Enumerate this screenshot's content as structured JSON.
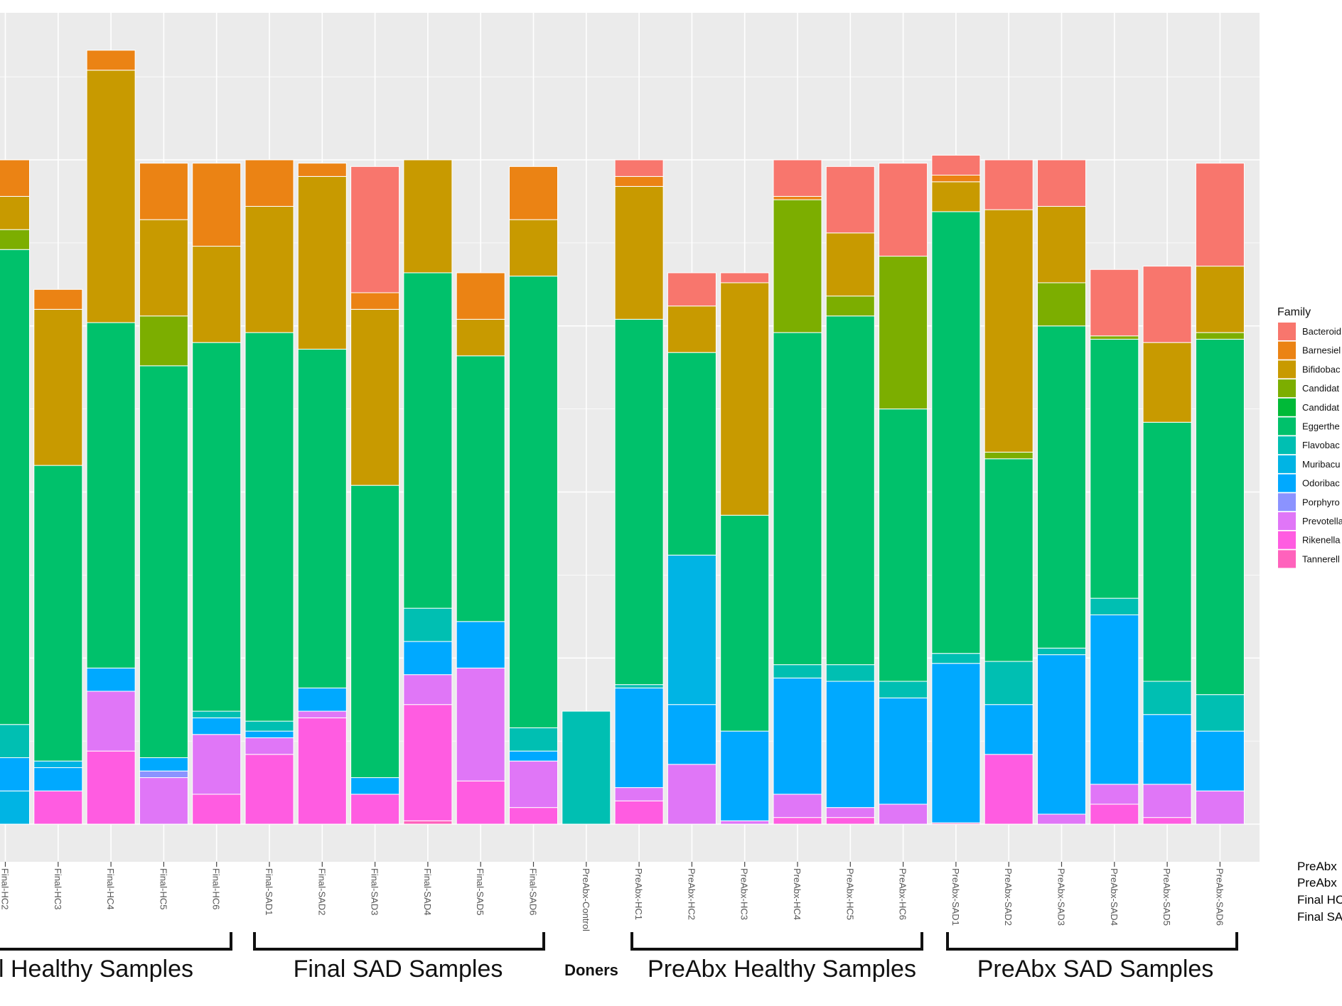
{
  "chart_data": {
    "type": "bar",
    "stacked": true,
    "title": "",
    "xlabel": "",
    "ylabel": "",
    "ylim": [
      0,
      1.2
    ],
    "grid": true,
    "legend_placement": "right",
    "legend_title": "Family",
    "families": [
      {
        "name": "Bacteroid",
        "color": "#F8766D"
      },
      {
        "name": "Barnesiel",
        "color": "#EB8314"
      },
      {
        "name": "Bifidobac",
        "color": "#C89A00"
      },
      {
        "name": "Candidat",
        "color": "#7CAE00"
      },
      {
        "name": "Candidat",
        "color": "#00BA38"
      },
      {
        "name": "Eggerthe",
        "color": "#00C16B"
      },
      {
        "name": "Flavobac",
        "color": "#00BFB2"
      },
      {
        "name": "Muribacu",
        "color": "#00B4E4"
      },
      {
        "name": "Odoribac",
        "color": "#00A9FF"
      },
      {
        "name": "Porphyro",
        "color": "#8B93FF"
      },
      {
        "name": "Prevotella",
        "color": "#E076F7"
      },
      {
        "name": "Rikenella",
        "color": "#FF5CE1"
      },
      {
        "name": "Tannerell",
        "color": "#FF62BC"
      }
    ],
    "samples": [
      {
        "label": "Final-HC2",
        "stack": [
          [
            "Muribacu",
            0.05
          ],
          [
            "Odoribac",
            0.05
          ],
          [
            "Flavobac",
            0.05
          ],
          [
            "Eggerthe",
            0.715
          ],
          [
            "Candidat",
            0.03
          ],
          [
            "Bifidobac",
            0.05
          ],
          [
            "Barnesiel",
            0.055
          ]
        ]
      },
      {
        "label": "Final-HC3",
        "stack": [
          [
            "Rikenella",
            0.05
          ],
          [
            "Flavobac",
            0.0
          ],
          [
            "Odoribac",
            0.035
          ],
          [
            "Muribacu",
            0.01
          ],
          [
            "Eggerthe",
            0.445
          ],
          [
            "Bifidobac",
            0.235
          ],
          [
            "Barnesiel",
            0.03
          ]
        ]
      },
      {
        "label": "Final-HC4",
        "stack": [
          [
            "Rikenella",
            0.11
          ],
          [
            "Prevotella",
            0.09
          ],
          [
            "Odoribac",
            0.035
          ],
          [
            "Eggerthe",
            0.52
          ],
          [
            "Bifidobac",
            0.38
          ],
          [
            "Barnesiel",
            0.03
          ]
        ]
      },
      {
        "label": "Final-HC5",
        "stack": [
          [
            "Prevotella",
            0.07
          ],
          [
            "Porphyro",
            0.01
          ],
          [
            "Odoribac",
            0.02
          ],
          [
            "Eggerthe",
            0.59
          ],
          [
            "Candidat",
            0.075
          ],
          [
            "Bifidobac",
            0.145
          ],
          [
            "Barnesiel",
            0.085
          ]
        ]
      },
      {
        "label": "Final-HC6",
        "stack": [
          [
            "Rikenella",
            0.045
          ],
          [
            "Prevotella",
            0.09
          ],
          [
            "Odoribac",
            0.025
          ],
          [
            "Flavobac",
            0.01
          ],
          [
            "Eggerthe",
            0.555
          ],
          [
            "Bifidobac",
            0.145
          ],
          [
            "Barnesiel",
            0.125
          ]
        ]
      },
      {
        "label": "Final-SAD1",
        "stack": [
          [
            "Rikenella",
            0.105
          ],
          [
            "Prevotella",
            0.025
          ],
          [
            "Odoribac",
            0.01
          ],
          [
            "Flavobac",
            0.015
          ],
          [
            "Eggerthe",
            0.585
          ],
          [
            "Bifidobac",
            0.19
          ],
          [
            "Barnesiel",
            0.07
          ]
        ]
      },
      {
        "label": "Final-SAD2",
        "stack": [
          [
            "Rikenella",
            0.16
          ],
          [
            "Prevotella",
            0.01
          ],
          [
            "Odoribac",
            0.035
          ],
          [
            "Eggerthe",
            0.51
          ],
          [
            "Bifidobac",
            0.26
          ],
          [
            "Barnesiel",
            0.02
          ]
        ]
      },
      {
        "label": "Final-SAD3",
        "stack": [
          [
            "Rikenella",
            0.045
          ],
          [
            "Odoribac",
            0.025
          ],
          [
            "Eggerthe",
            0.44
          ],
          [
            "Bifidobac",
            0.265
          ],
          [
            "Barnesiel",
            0.025
          ],
          [
            "Bacteroid",
            0.19
          ]
        ]
      },
      {
        "label": "Final-SAD4",
        "stack": [
          [
            "Tannerell",
            0.005
          ],
          [
            "Rikenella",
            0.175
          ],
          [
            "Prevotella",
            0.045
          ],
          [
            "Odoribac",
            0.05
          ],
          [
            "Flavobac",
            0.05
          ],
          [
            "Eggerthe",
            0.505
          ],
          [
            "Bifidobac",
            0.17
          ]
        ]
      },
      {
        "label": "Final-SAD5",
        "stack": [
          [
            "Rikenella",
            0.065
          ],
          [
            "Prevotella",
            0.17
          ],
          [
            "Odoribac",
            0.07
          ],
          [
            "Eggerthe",
            0.4
          ],
          [
            "Bifidobac",
            0.055
          ],
          [
            "Barnesiel",
            0.07
          ]
        ]
      },
      {
        "label": "Final-SAD6",
        "stack": [
          [
            "Rikenella",
            0.025
          ],
          [
            "Prevotella",
            0.07
          ],
          [
            "Odoribac",
            0.015
          ],
          [
            "Flavobac",
            0.035
          ],
          [
            "Eggerthe",
            0.68
          ],
          [
            "Bifidobac",
            0.085
          ],
          [
            "Barnesiel",
            0.08
          ]
        ]
      },
      {
        "label": "PreAbx-Control",
        "stack": [
          [
            "Flavobac",
            0.17
          ]
        ]
      },
      {
        "label": "PreAbx-HC1",
        "stack": [
          [
            "Rikenella",
            0.035
          ],
          [
            "Prevotella",
            0.02
          ],
          [
            "Odoribac",
            0.15
          ],
          [
            "Flavobac",
            0.005
          ],
          [
            "Eggerthe",
            0.55
          ],
          [
            "Bifidobac",
            0.2
          ],
          [
            "Barnesiel",
            0.015
          ],
          [
            "Bacteroid",
            0.025
          ]
        ]
      },
      {
        "label": "PreAbx-HC2",
        "stack": [
          [
            "Prevotella",
            0.09
          ],
          [
            "Odoribac",
            0.09
          ],
          [
            "Muribacu",
            0.225
          ],
          [
            "Eggerthe",
            0.305
          ],
          [
            "Bifidobac",
            0.07
          ],
          [
            "Bacteroid",
            0.05
          ]
        ]
      },
      {
        "label": "PreAbx-HC3",
        "stack": [
          [
            "Prevotella",
            0.005
          ],
          [
            "Odoribac",
            0.135
          ],
          [
            "Eggerthe",
            0.325
          ],
          [
            "Bifidobac",
            0.35
          ],
          [
            "Bacteroid",
            0.015
          ]
        ]
      },
      {
        "label": "PreAbx-HC4",
        "stack": [
          [
            "Rikenella",
            0.01
          ],
          [
            "Prevotella",
            0.035
          ],
          [
            "Odoribac",
            0.175
          ],
          [
            "Flavobac",
            0.02
          ],
          [
            "Eggerthe",
            0.5
          ],
          [
            "Candidat",
            0.2
          ],
          [
            "Barnesiel",
            0.005
          ],
          [
            "Bacteroid",
            0.055
          ]
        ]
      },
      {
        "label": "PreAbx-HC5",
        "stack": [
          [
            "Rikenella",
            0.01
          ],
          [
            "Prevotella",
            0.015
          ],
          [
            "Odoribac",
            0.19
          ],
          [
            "Flavobac",
            0.025
          ],
          [
            "Eggerthe",
            0.525
          ],
          [
            "Candidat",
            0.03
          ],
          [
            "Bifidobac",
            0.095
          ],
          [
            "Bacteroid",
            0.1
          ]
        ]
      },
      {
        "label": "PreAbx-HC6",
        "stack": [
          [
            "Prevotella",
            0.03
          ],
          [
            "Odoribac",
            0.16
          ],
          [
            "Flavobac",
            0.025
          ],
          [
            "Eggerthe",
            0.41
          ],
          [
            "Candidat",
            0.23
          ],
          [
            "Bacteroid",
            0.14
          ]
        ]
      },
      {
        "label": "PreAbx-SAD1",
        "stack": [
          [
            "Tannerell",
            0.002
          ],
          [
            "Odoribac",
            0.24
          ],
          [
            "Flavobac",
            0.015
          ],
          [
            "Eggerthe",
            0.665
          ],
          [
            "Bifidobac",
            0.045
          ],
          [
            "Barnesiel",
            0.01
          ],
          [
            "Bacteroid",
            0.03
          ]
        ]
      },
      {
        "label": "PreAbx-SAD2",
        "stack": [
          [
            "Rikenella",
            0.105
          ],
          [
            "Odoribac",
            0.075
          ],
          [
            "Flavobac",
            0.065
          ],
          [
            "Eggerthe",
            0.305
          ],
          [
            "Candidat",
            0.01
          ],
          [
            "Bifidobac",
            0.365
          ],
          [
            "Bacteroid",
            0.075
          ]
        ]
      },
      {
        "label": "PreAbx-SAD3",
        "stack": [
          [
            "Prevotella",
            0.015
          ],
          [
            "Odoribac",
            0.24
          ],
          [
            "Flavobac",
            0.01
          ],
          [
            "Eggerthe",
            0.485
          ],
          [
            "Candidat",
            0.065
          ],
          [
            "Bifidobac",
            0.115
          ],
          [
            "Bacteroid",
            0.07
          ]
        ]
      },
      {
        "label": "PreAbx-SAD4",
        "stack": [
          [
            "Rikenella",
            0.03
          ],
          [
            "Prevotella",
            0.03
          ],
          [
            "Odoribac",
            0.255
          ],
          [
            "Flavobac",
            0.025
          ],
          [
            "Eggerthe",
            0.39
          ],
          [
            "Candidat",
            0.005
          ],
          [
            "Bacteroid",
            0.1
          ]
        ]
      },
      {
        "label": "PreAbx-SAD5",
        "stack": [
          [
            "Rikenella",
            0.01
          ],
          [
            "Prevotella",
            0.05
          ],
          [
            "Odoribac",
            0.105
          ],
          [
            "Flavobac",
            0.05
          ],
          [
            "Eggerthe",
            0.39
          ],
          [
            "Bifidobac",
            0.12
          ],
          [
            "Bacteroid",
            0.115
          ]
        ]
      },
      {
        "label": "PreAbx-SAD6",
        "stack": [
          [
            "Prevotella",
            0.05
          ],
          [
            "Odoribac",
            0.09
          ],
          [
            "Flavobac",
            0.055
          ],
          [
            "Eggerthe",
            0.535
          ],
          [
            "Candidat",
            0.01
          ],
          [
            "Bifidobac",
            0.1
          ],
          [
            "Bacteroid",
            0.155
          ]
        ]
      }
    ],
    "groups": [
      {
        "label": "l Healthy Samples"
      },
      {
        "label": "Final SAD Samples"
      },
      {
        "label": "Doners"
      },
      {
        "label": "PreAbx Healthy Samples"
      },
      {
        "label": "PreAbx SAD Samples"
      }
    ],
    "notes": [
      "PreAbx",
      "PreAbx",
      "Final HC",
      "Final SA"
    ]
  }
}
